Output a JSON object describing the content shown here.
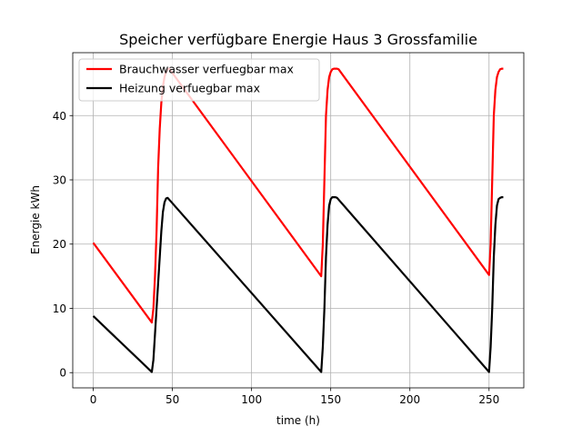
{
  "chart_data": {
    "type": "line",
    "title": "Speicher verfügbare Energie Haus 3 Grossfamilie",
    "xlabel": "time (h)",
    "ylabel": "Energie kWh",
    "xlim": [
      -12.95,
      271.95
    ],
    "ylim": [
      -2.37,
      49.79
    ],
    "xticks": [
      0,
      50,
      100,
      150,
      200,
      250
    ],
    "yticks": [
      0,
      10,
      20,
      30,
      40
    ],
    "grid": true,
    "legend_position": "top-left",
    "series": [
      {
        "name": "Brauchwasser verfuegbar max",
        "color": "#ff0000",
        "x": [
          0,
          37,
          38,
          39,
          40,
          41,
          42,
          43,
          44,
          45,
          46,
          47,
          48,
          144,
          145,
          146,
          147,
          148,
          149,
          150,
          151,
          152,
          153,
          154,
          155,
          250,
          251,
          252,
          253,
          254,
          255,
          256,
          257,
          258,
          259
        ],
        "y": [
          20.2,
          7.8,
          10,
          15,
          22,
          32,
          38,
          42,
          44.5,
          46,
          46.8,
          47.2,
          47.3,
          15.0,
          20,
          30,
          40,
          44,
          46,
          46.8,
          47.2,
          47.3,
          47.3,
          47.3,
          47.2,
          15.2,
          20,
          30,
          40,
          44,
          46,
          46.8,
          47.2,
          47.3,
          47.3
        ]
      },
      {
        "name": "Heizung verfuegbar max",
        "color": "#000000",
        "x": [
          0,
          37,
          38,
          39,
          40,
          41,
          42,
          43,
          44,
          45,
          46,
          47,
          144,
          145,
          146,
          147,
          148,
          149,
          150,
          151,
          152,
          153,
          154,
          250,
          251,
          252,
          253,
          254,
          255,
          256,
          257,
          258,
          259
        ],
        "y": [
          8.8,
          0.1,
          2,
          6,
          10,
          14,
          18,
          22,
          25,
          26.5,
          27.1,
          27.2,
          0.1,
          4,
          10,
          18,
          23,
          26,
          27,
          27.3,
          27.3,
          27.3,
          27.2,
          0.1,
          4,
          10,
          18,
          23,
          26,
          27,
          27.2,
          27.3,
          27.3
        ]
      }
    ]
  }
}
